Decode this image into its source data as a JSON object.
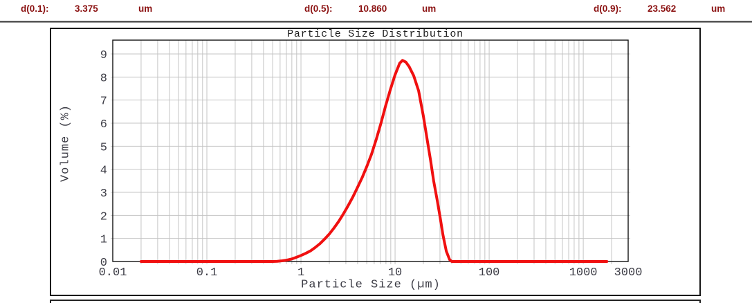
{
  "stats": [
    {
      "label": "d(0.1):",
      "value": "3.375",
      "unit": "um"
    },
    {
      "label": "d(0.5):",
      "value": "10.860",
      "unit": "um"
    },
    {
      "label": "d(0.9):",
      "value": "23.562",
      "unit": "um"
    }
  ],
  "colors": {
    "stat_text": "#8b1212",
    "curve_red": "#f01010",
    "grid": "#c4c4c4",
    "axis": "#111111",
    "frame": "#151515",
    "tick_text": "#3d3d46",
    "header_rule": "#565656"
  },
  "chart_data": {
    "type": "line",
    "title": "Particle Size Distribution",
    "xlabel": "Particle Size (µm)",
    "ylabel": "Volume (%)",
    "x_scale": "log",
    "xlim": [
      0.01,
      3000
    ],
    "ylim": [
      0,
      9.6
    ],
    "grid": true,
    "legend": false,
    "xticks": [
      {
        "value": 0.01,
        "label": "0.01"
      },
      {
        "value": 0.1,
        "label": "0.1"
      },
      {
        "value": 1,
        "label": "1"
      },
      {
        "value": 10,
        "label": "10"
      },
      {
        "value": 100,
        "label": "100"
      },
      {
        "value": 1000,
        "label": "1000"
      },
      {
        "value": 3000,
        "label": "3000"
      }
    ],
    "yticks": [
      0,
      1,
      2,
      3,
      4,
      5,
      6,
      7,
      8,
      9
    ],
    "series": [
      {
        "name": "volume-distribution",
        "color": "#f01010",
        "points": [
          [
            0.02,
            0
          ],
          [
            0.05,
            0
          ],
          [
            0.1,
            0
          ],
          [
            0.2,
            0
          ],
          [
            0.3,
            0
          ],
          [
            0.4,
            0
          ],
          [
            0.5,
            0
          ],
          [
            0.56,
            0.01
          ],
          [
            0.63,
            0.03
          ],
          [
            0.71,
            0.06
          ],
          [
            0.8,
            0.11
          ],
          [
            0.89,
            0.18
          ],
          [
            1.0,
            0.26
          ],
          [
            1.12,
            0.35
          ],
          [
            1.26,
            0.46
          ],
          [
            1.41,
            0.6
          ],
          [
            1.59,
            0.77
          ],
          [
            1.78,
            0.97
          ],
          [
            2.0,
            1.19
          ],
          [
            2.24,
            1.45
          ],
          [
            2.51,
            1.73
          ],
          [
            2.82,
            2.06
          ],
          [
            3.16,
            2.41
          ],
          [
            3.55,
            2.79
          ],
          [
            3.98,
            3.2
          ],
          [
            4.47,
            3.64
          ],
          [
            5.01,
            4.12
          ],
          [
            5.62,
            4.65
          ],
          [
            6.31,
            5.3
          ],
          [
            7.08,
            6.0
          ],
          [
            7.94,
            6.75
          ],
          [
            8.91,
            7.45
          ],
          [
            10,
            8.1
          ],
          [
            11.2,
            8.6
          ],
          [
            12,
            8.72
          ],
          [
            13,
            8.65
          ],
          [
            14.1,
            8.45
          ],
          [
            15.8,
            8.05
          ],
          [
            17.8,
            7.4
          ],
          [
            20,
            6.3
          ],
          [
            21.9,
            5.3
          ],
          [
            23.8,
            4.4
          ],
          [
            25.7,
            3.5
          ],
          [
            28.2,
            2.6
          ],
          [
            30,
            1.95
          ],
          [
            32.3,
            1.15
          ],
          [
            35,
            0.45
          ],
          [
            38,
            0.08
          ],
          [
            40,
            0
          ],
          [
            50,
            0
          ],
          [
            100,
            0
          ],
          [
            300,
            0
          ],
          [
            1000,
            0
          ],
          [
            1780,
            0
          ]
        ]
      }
    ]
  }
}
